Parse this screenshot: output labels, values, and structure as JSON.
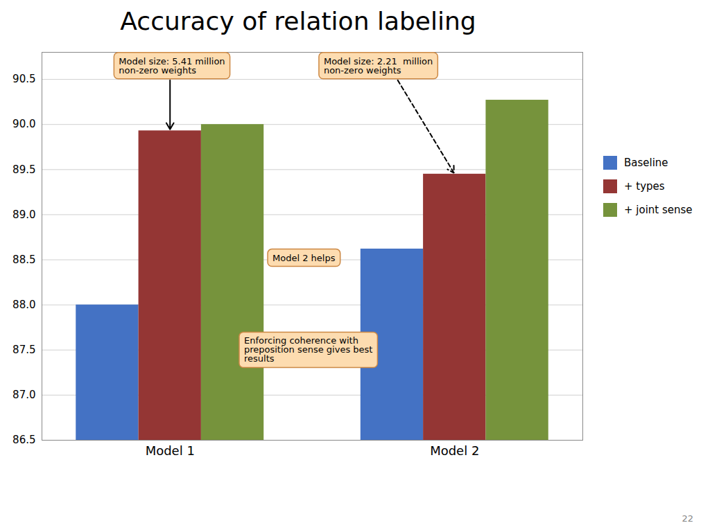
{
  "chart_data": {
    "type": "bar",
    "title": "Accuracy of relation labeling",
    "categories": [
      "Model 1",
      "Model 2"
    ],
    "series": [
      {
        "name": "Baseline",
        "color": "#4472C4",
        "values": [
          88.0,
          88.62
        ]
      },
      {
        "name": "+ types",
        "color": "#943634",
        "values": [
          89.93,
          89.45
        ]
      },
      {
        "name": "+ joint sense",
        "color": "#76933C",
        "values": [
          90.0,
          90.27
        ]
      }
    ],
    "ylim": [
      86.5,
      90.8
    ],
    "yticks": [
      86.5,
      {
        "value": 87.0,
        "label": "87.0"
      },
      87.5,
      {
        "value": 88.0,
        "label": "88.0"
      },
      88.5,
      {
        "value": 89.0,
        "label": "89.0"
      },
      89.5,
      {
        "value": 90.0,
        "label": "90.0"
      },
      90.5
    ],
    "grid": true,
    "legend": "right",
    "annotations": [
      "Model size: 5.41 million\nnon-zero weights",
      "Model size: 2.21  million\nnon-zero weights",
      "Model 2 helps",
      "Enforcing coherence with\npreposition sense gives best\nresults",
      "22"
    ]
  }
}
